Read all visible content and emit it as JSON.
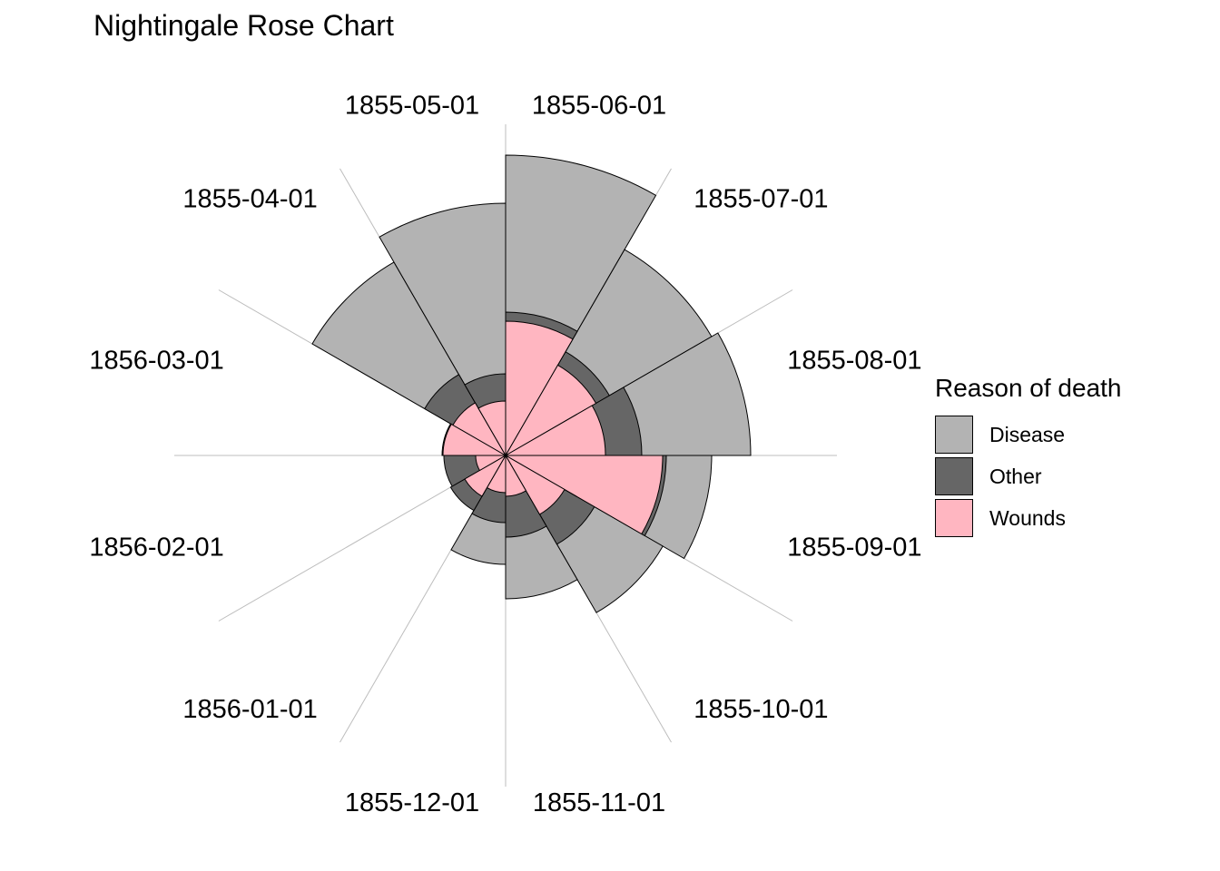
{
  "chart_data": {
    "type": "rose",
    "title": "Nightingale Rose Chart",
    "categories": [
      "1855-06-01",
      "1855-07-01",
      "1855-08-01",
      "1855-09-01",
      "1855-10-01",
      "1855-11-01",
      "1855-12-01",
      "1856-01-01",
      "1856-02-01",
      "1856-03-01",
      "1855-04-01",
      "1855-05-01"
    ],
    "series": [
      {
        "name": "Disease",
        "color": "#b3b3b3",
        "values": [
          331,
          262,
          270,
          227,
          200,
          158,
          120,
          0,
          0,
          70,
          246,
          278
        ]
      },
      {
        "name": "Other",
        "color": "#666666",
        "values": [
          158,
          132,
          150,
          177,
          113,
          90,
          74,
          70,
          68,
          69,
          103,
          90
        ]
      },
      {
        "name": "Wounds",
        "color": "#ffb6c1",
        "values": [
          148,
          115,
          110,
          173,
          75,
          45,
          41,
          52,
          33,
          69,
          67,
          60
        ]
      }
    ],
    "legend_title": "Reason of death",
    "legend_position": "right",
    "grid": true
  }
}
